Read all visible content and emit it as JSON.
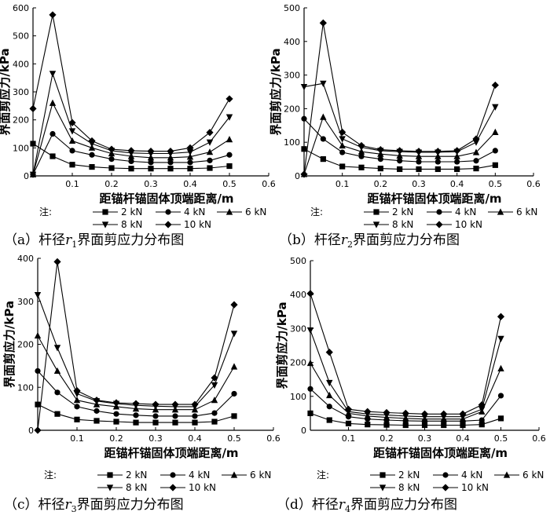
{
  "legend": {
    "prefix": "注:",
    "entries": [
      {
        "label": "2 kN",
        "marker": "square"
      },
      {
        "label": "4 kN",
        "marker": "circle"
      },
      {
        "label": "6 kN",
        "marker": "triangle-up"
      },
      {
        "label": "8 kN",
        "marker": "triangle-down"
      },
      {
        "label": "10 kN",
        "marker": "diamond"
      }
    ]
  },
  "chart_data": [
    {
      "type": "line",
      "caption": {
        "prefix": "（a）杆径",
        "var": "r",
        "sub": "1",
        "suffix": "界面剪应力分布图"
      },
      "xlabel": "距锚杆锚固体顶端距离/m",
      "ylabel": "界面剪应力/kPa",
      "xlim": [
        0,
        0.6
      ],
      "ylim": [
        0,
        600
      ],
      "xticks": [
        "0.1",
        "0.2",
        "0.3",
        "0.4",
        "0.5",
        "0.6"
      ],
      "xtick_values": [
        0.1,
        0.2,
        0.3,
        0.4,
        0.5,
        0.6
      ],
      "yticks": [
        "0",
        "100",
        "200",
        "300",
        "400",
        "500",
        "600"
      ],
      "ytick_values": [
        0,
        100,
        200,
        300,
        400,
        500,
        600
      ],
      "x": [
        0,
        0.05,
        0.1,
        0.15,
        0.2,
        0.25,
        0.3,
        0.35,
        0.4,
        0.45,
        0.5
      ],
      "series": [
        {
          "name": "2 kN",
          "marker": "square",
          "values": [
            115,
            70,
            40,
            32,
            28,
            26,
            26,
            26,
            26,
            28,
            35
          ]
        },
        {
          "name": "4 kN",
          "marker": "circle",
          "values": [
            5,
            150,
            90,
            75,
            60,
            52,
            48,
            48,
            48,
            55,
            75
          ]
        },
        {
          "name": "6 kN",
          "marker": "triangle-up",
          "values": [
            5,
            260,
            125,
            100,
            80,
            70,
            65,
            65,
            68,
            85,
            130
          ]
        },
        {
          "name": "8 kN",
          "marker": "triangle-down",
          "values": [
            5,
            365,
            160,
            115,
            90,
            82,
            80,
            80,
            85,
            120,
            210
          ]
        },
        {
          "name": "10 kN",
          "marker": "diamond",
          "values": [
            240,
            575,
            190,
            125,
            95,
            90,
            88,
            88,
            100,
            155,
            275
          ]
        }
      ]
    },
    {
      "type": "line",
      "caption": {
        "prefix": "（b）杆径",
        "var": "r",
        "sub": "2",
        "suffix": "界面剪应力分布图"
      },
      "xlabel": "距锚杆锚固体顶端距离/m",
      "ylabel": "界面剪应力/kPa",
      "xlim": [
        0,
        0.6
      ],
      "ylim": [
        0,
        500
      ],
      "xticks": [
        "0.1",
        "0.2",
        "0.3",
        "0.4",
        "0.5",
        "0.6"
      ],
      "xtick_values": [
        0.1,
        0.2,
        0.3,
        0.4,
        0.5,
        0.6
      ],
      "yticks": [
        "0",
        "100",
        "200",
        "300",
        "400",
        "500"
      ],
      "ytick_values": [
        0,
        100,
        200,
        300,
        400,
        500
      ],
      "x": [
        0,
        0.05,
        0.1,
        0.15,
        0.2,
        0.25,
        0.3,
        0.35,
        0.4,
        0.45,
        0.5
      ],
      "series": [
        {
          "name": "2 kN",
          "marker": "square",
          "values": [
            80,
            50,
            28,
            25,
            22,
            20,
            20,
            20,
            20,
            22,
            32
          ]
        },
        {
          "name": "4 kN",
          "marker": "circle",
          "values": [
            170,
            110,
            70,
            58,
            50,
            45,
            42,
            42,
            42,
            45,
            75
          ]
        },
        {
          "name": "6 kN",
          "marker": "triangle-up",
          "values": [
            5,
            175,
            90,
            72,
            65,
            60,
            58,
            58,
            58,
            70,
            130
          ]
        },
        {
          "name": "8 kN",
          "marker": "triangle-down",
          "values": [
            265,
            275,
            110,
            85,
            75,
            72,
            70,
            70,
            72,
            100,
            205
          ]
        },
        {
          "name": "10 kN",
          "marker": "diamond",
          "values": [
            5,
            455,
            130,
            90,
            78,
            75,
            73,
            73,
            75,
            110,
            270
          ]
        }
      ]
    },
    {
      "type": "line",
      "caption": {
        "prefix": "（c）杆径",
        "var": "r",
        "sub": "3",
        "suffix": "界面剪应力分布图"
      },
      "xlabel": "距锚杆锚固体顶端距离/m",
      "ylabel": "界面剪应力/kPa",
      "xlim": [
        0,
        0.6
      ],
      "ylim": [
        0,
        400
      ],
      "xticks": [
        "0.1",
        "0.2",
        "0.3",
        "0.4",
        "0.5",
        "0.6"
      ],
      "xtick_values": [
        0.1,
        0.2,
        0.3,
        0.4,
        0.5,
        0.6
      ],
      "yticks": [
        "0",
        "100",
        "200",
        "300",
        "400"
      ],
      "ytick_values": [
        0,
        100,
        200,
        300,
        400
      ],
      "x": [
        0,
        0.05,
        0.1,
        0.15,
        0.2,
        0.25,
        0.3,
        0.35,
        0.4,
        0.45,
        0.5
      ],
      "series": [
        {
          "name": "2 kN",
          "marker": "square",
          "values": [
            60,
            38,
            25,
            22,
            20,
            18,
            18,
            18,
            18,
            20,
            33
          ]
        },
        {
          "name": "4 kN",
          "marker": "circle",
          "values": [
            138,
            88,
            55,
            45,
            38,
            35,
            33,
            33,
            33,
            40,
            85
          ]
        },
        {
          "name": "6 kN",
          "marker": "triangle-up",
          "values": [
            220,
            138,
            70,
            60,
            55,
            50,
            48,
            48,
            48,
            70,
            148
          ]
        },
        {
          "name": "8 kN",
          "marker": "triangle-down",
          "values": [
            315,
            192,
            85,
            68,
            62,
            58,
            56,
            55,
            55,
            105,
            225
          ]
        },
        {
          "name": "10 kN",
          "marker": "diamond",
          "values": [
            0,
            392,
            92,
            70,
            64,
            62,
            60,
            60,
            60,
            122,
            292
          ]
        }
      ]
    },
    {
      "type": "line",
      "caption": {
        "prefix": "（d）杆径",
        "var": "r",
        "sub": "4",
        "suffix": "界面剪应力分布图"
      },
      "xlabel": "距锚杆锚固体顶端距离/m",
      "ylabel": "界面剪应力/kPa",
      "xlim": [
        0,
        0.6
      ],
      "ylim": [
        0,
        500
      ],
      "xticks": [
        "0.1",
        "0.2",
        "0.3",
        "0.4",
        "0.5",
        "0.6"
      ],
      "xtick_values": [
        0.1,
        0.2,
        0.3,
        0.4,
        0.5,
        0.6
      ],
      "yticks": [
        "0",
        "100",
        "200",
        "300",
        "400",
        "500"
      ],
      "ytick_values": [
        0,
        100,
        200,
        300,
        400,
        500
      ],
      "x": [
        0,
        0.05,
        0.1,
        0.15,
        0.2,
        0.25,
        0.3,
        0.35,
        0.4,
        0.45,
        0.5
      ],
      "series": [
        {
          "name": "2 kN",
          "marker": "square",
          "values": [
            50,
            30,
            20,
            17,
            16,
            15,
            15,
            15,
            15,
            17,
            35
          ]
        },
        {
          "name": "4 kN",
          "marker": "circle",
          "values": [
            122,
            70,
            40,
            33,
            30,
            28,
            27,
            27,
            27,
            30,
            102
          ]
        },
        {
          "name": "6 kN",
          "marker": "triangle-up",
          "values": [
            198,
            103,
            50,
            42,
            38,
            35,
            33,
            33,
            33,
            55,
            182
          ]
        },
        {
          "name": "8 kN",
          "marker": "triangle-down",
          "values": [
            295,
            140,
            55,
            48,
            45,
            42,
            40,
            40,
            40,
            62,
            270
          ]
        },
        {
          "name": "10 kN",
          "marker": "diamond",
          "values": [
            403,
            230,
            62,
            55,
            52,
            50,
            48,
            48,
            48,
            75,
            335
          ]
        }
      ]
    }
  ]
}
